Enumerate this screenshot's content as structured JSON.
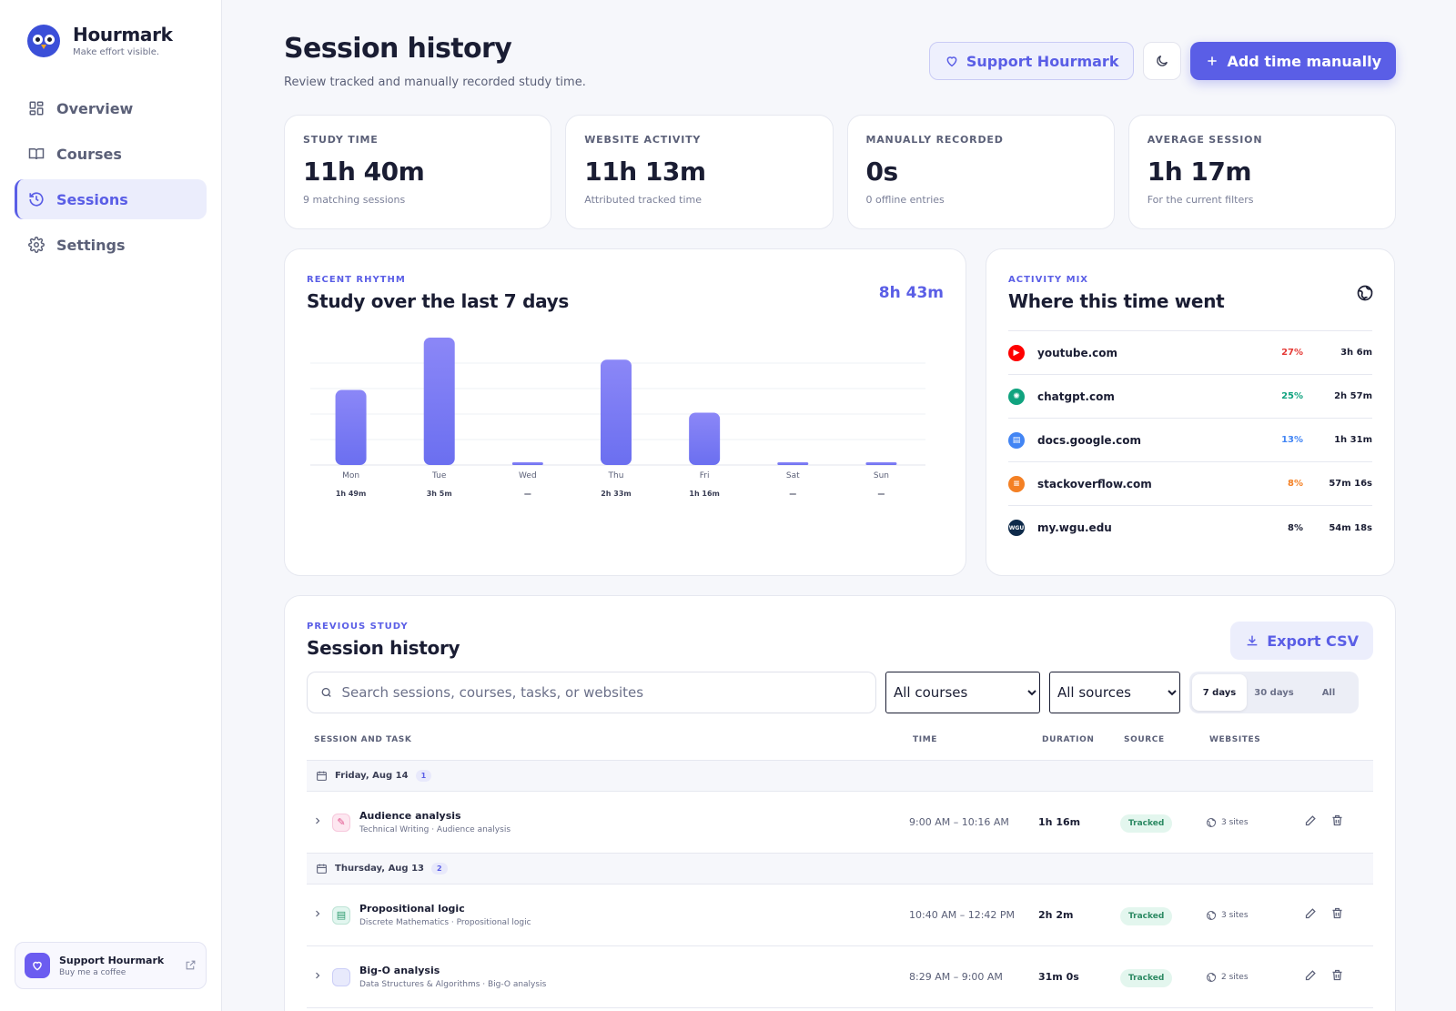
{
  "brand": {
    "name": "Hourmark",
    "tagline": "Make effort visible."
  },
  "nav": [
    {
      "label": "Overview",
      "icon": "grid-icon",
      "active": false
    },
    {
      "label": "Courses",
      "icon": "book-icon",
      "active": false
    },
    {
      "label": "Sessions",
      "icon": "history-icon",
      "active": true
    },
    {
      "label": "Settings",
      "icon": "gear-icon",
      "active": false
    }
  ],
  "support_card": {
    "title": "Support Hourmark",
    "subtitle": "Buy me a coffee"
  },
  "header": {
    "title": "Session history",
    "subtitle": "Review tracked and manually recorded study time.",
    "support_label": "Support Hourmark",
    "add_label": "Add time manually"
  },
  "stats": [
    {
      "label": "STUDY TIME",
      "value": "11h 40m",
      "sub": "9 matching sessions"
    },
    {
      "label": "WEBSITE ACTIVITY",
      "value": "11h 13m",
      "sub": "Attributed tracked time"
    },
    {
      "label": "MANUALLY RECORDED",
      "value": "0s",
      "sub": "0 offline entries"
    },
    {
      "label": "AVERAGE SESSION",
      "value": "1h 17m",
      "sub": "For the current filters"
    }
  ],
  "rhythm": {
    "eyebrow": "RECENT RHYTHM",
    "title": "Study over the last 7 days",
    "total": "8h 43m"
  },
  "chart_data": {
    "type": "bar",
    "categories": [
      "Mon",
      "Tue",
      "Wed",
      "Thu",
      "Fri",
      "Sat",
      "Sun"
    ],
    "values": [
      109,
      185,
      0,
      153,
      76,
      0,
      0
    ],
    "value_labels": [
      "1h 49m",
      "3h 5m",
      "—",
      "2h 33m",
      "1h 16m",
      "—",
      "—"
    ],
    "ylim": [
      0,
      185
    ],
    "grid": true,
    "color": "#6b6ff0"
  },
  "mix": {
    "eyebrow": "ACTIVITY MIX",
    "title": "Where this time went",
    "items": [
      {
        "site": "youtube.com",
        "pct": "27%",
        "dur": "3h 6m",
        "color": "#ff0000",
        "pct_color": "#e53935",
        "icon": "youtube-icon",
        "glyph": "▶"
      },
      {
        "site": "chatgpt.com",
        "pct": "25%",
        "dur": "2h 57m",
        "color": "#10a37f",
        "pct_color": "#10a37f",
        "icon": "chatgpt-icon",
        "glyph": "✺"
      },
      {
        "site": "docs.google.com",
        "pct": "13%",
        "dur": "1h 31m",
        "color": "#4285f4",
        "pct_color": "#4285f4",
        "icon": "google-docs-icon",
        "glyph": "▤"
      },
      {
        "site": "stackoverflow.com",
        "pct": "8%",
        "dur": "57m 16s",
        "color": "#f48024",
        "pct_color": "#f48024",
        "icon": "stackoverflow-icon",
        "glyph": "≡"
      },
      {
        "site": "my.wgu.edu",
        "pct": "8%",
        "dur": "54m 18s",
        "color": "#0e2a4a",
        "pct_color": "#1a1d33",
        "icon": "wgu-icon",
        "glyph": "WGU"
      }
    ]
  },
  "history": {
    "eyebrow": "PREVIOUS STUDY",
    "title": "Session history",
    "export_label": "Export CSV",
    "search_placeholder": "Search sessions, courses, tasks, or websites",
    "course_filter": "All courses",
    "source_filter": "All sources",
    "ranges": [
      "7 days",
      "30 days",
      "All"
    ],
    "active_range": 0,
    "columns": {
      "task": "SESSION AND TASK",
      "time": "TIME",
      "duration": "DURATION",
      "source": "SOURCE",
      "websites": "WEBSITES"
    },
    "groups": [
      {
        "date": "Friday, Aug 14",
        "count": "1",
        "rows": [
          {
            "name": "Audience analysis",
            "sub": "Technical Writing · Audience analysis",
            "time": "9:00 AM – 10:16 AM",
            "duration": "1h 16m",
            "source": "Tracked",
            "websites": "3 sites",
            "icon": "pencil-icon",
            "icon_bg": "#fde7f0",
            "icon_color": "#e0508a",
            "glyph": "✎"
          }
        ]
      },
      {
        "date": "Thursday, Aug 13",
        "count": "2",
        "rows": [
          {
            "name": "Propositional logic",
            "sub": "Discrete Mathematics · Propositional logic",
            "time": "10:40 AM – 12:42 PM",
            "duration": "2h 2m",
            "source": "Tracked",
            "websites": "3 sites",
            "icon": "notes-icon",
            "icon_bg": "#e2f6ef",
            "icon_color": "#2c9a6e",
            "glyph": "▤"
          },
          {
            "name": "Big-O analysis",
            "sub": "Data Structures & Algorithms · Big-O analysis",
            "time": "8:29 AM – 9:00 AM",
            "duration": "31m 0s",
            "source": "Tracked",
            "websites": "2 sites",
            "icon": "code-icon",
            "icon_bg": "#e8eafc",
            "icon_color": "#5a5ee6",
            "glyph": "</>"
          }
        ]
      }
    ]
  }
}
